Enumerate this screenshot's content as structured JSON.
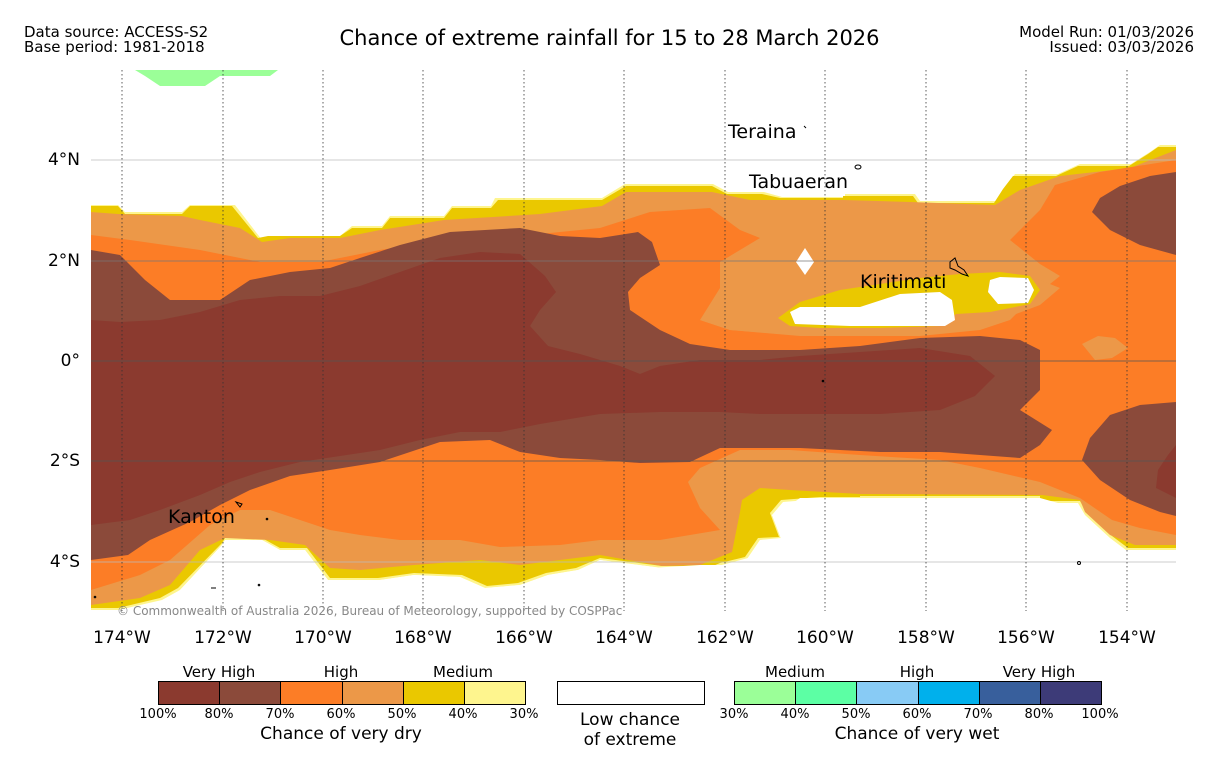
{
  "header": {
    "data_source": "Data source: ACCESS-S2",
    "base_period": "Base period: 1981-2018",
    "title": "Chance of extreme rainfall for 15 to 28 March 2026",
    "model_run": "Model Run: 01/03/2026",
    "issued": "Issued: 03/03/2026"
  },
  "map": {
    "latitude_ticks": [
      "4°N",
      "2°N",
      "0°",
      "2°S",
      "4°S"
    ],
    "longitude_ticks": [
      "174°W",
      "172°W",
      "170°W",
      "168°W",
      "166°W",
      "164°W",
      "162°W",
      "160°W",
      "158°W",
      "156°W",
      "154°W"
    ],
    "places": [
      "Teraina",
      "Tabuaeran",
      "Kiritimati",
      "Kanton"
    ],
    "copyright": "© Commonwealth of Australia 2026, Bureau of Meteorology, supported by COSPPac",
    "colors": {
      "dry_100_80": "#8b3a2f",
      "dry_80_70": "#8b4a3a",
      "dry_70_60": "#fc7d26",
      "dry_60_50": "#ec9848",
      "dry_50_40": "#eac800",
      "dry_40_30": "#fef58e",
      "wet_30_40": "#9bff98"
    }
  },
  "legend": {
    "dry": {
      "categories": [
        "Very High",
        "High",
        "Medium"
      ],
      "percent_labels": [
        "100%",
        "80%",
        "70%",
        "60%",
        "50%",
        "40%",
        "30%"
      ],
      "colors": [
        "#8b3a2f",
        "#8b4a3a",
        "#fc7d26",
        "#ec9848",
        "#eac800",
        "#fef58e"
      ],
      "caption": "Chance of very dry"
    },
    "low": {
      "caption_line1": "Low chance",
      "caption_line2": "of extreme"
    },
    "wet": {
      "categories": [
        "Medium",
        "High",
        "Very High"
      ],
      "percent_labels": [
        "30%",
        "40%",
        "50%",
        "60%",
        "70%",
        "80%",
        "100%"
      ],
      "colors": [
        "#9bff98",
        "#5cffa4",
        "#88cbf5",
        "#00b0ec",
        "#385f9c",
        "#3d3b78"
      ],
      "caption": "Chance of very wet"
    }
  }
}
